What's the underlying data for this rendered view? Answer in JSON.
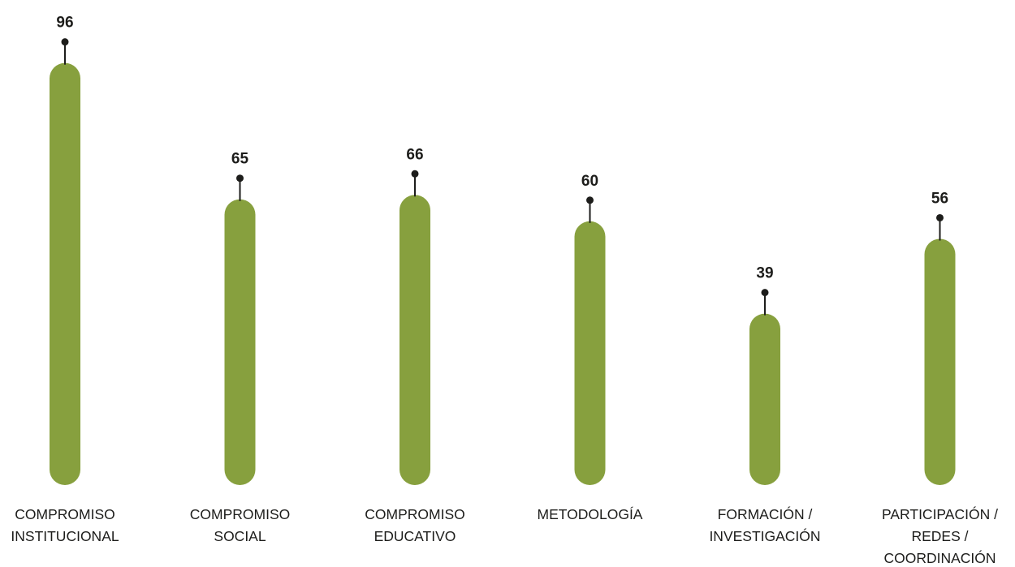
{
  "chart_data": {
    "type": "bar",
    "categories": [
      [
        "COMPROMISO",
        "INSTITUCIONAL"
      ],
      [
        "COMPROMISO",
        "SOCIAL"
      ],
      [
        "COMPROMISO",
        "EDUCATIVO"
      ],
      [
        "METODOLOGÍA"
      ],
      [
        "FORMACIÓN /",
        "INVESTIGACIÓN"
      ],
      [
        "PARTICIPACIÓN /",
        "REDES /",
        "COORDINACIÓN"
      ]
    ],
    "values": [
      96,
      65,
      66,
      60,
      39,
      56
    ],
    "data_labels": [
      "96",
      "65",
      "66",
      "60",
      "39",
      "56"
    ],
    "title": "",
    "xlabel": "",
    "ylabel": "",
    "ylim": [
      0,
      100
    ],
    "grid": false,
    "legend": "none",
    "colors": {
      "bar": "#87a03e",
      "marker": "#1d1d1b"
    }
  }
}
